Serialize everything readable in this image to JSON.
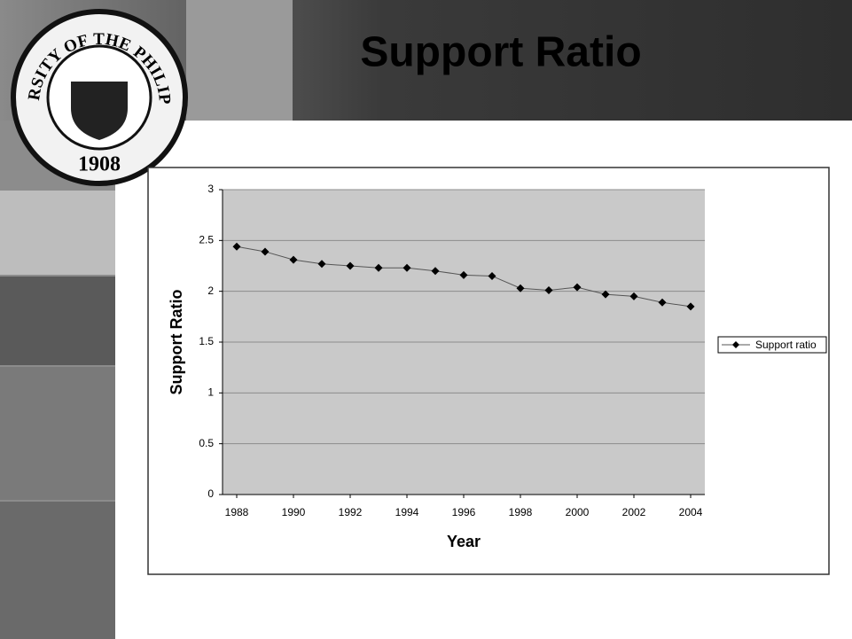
{
  "slide": {
    "title": "Support Ratio"
  },
  "logo": {
    "text": "UNIVERSITY OF THE PHILIPPINES",
    "year": "1908"
  },
  "chart_data": {
    "type": "line",
    "x": [
      1988,
      1989,
      1990,
      1991,
      1992,
      1993,
      1994,
      1995,
      1996,
      1997,
      1998,
      1999,
      2000,
      2001,
      2002,
      2003,
      2004
    ],
    "series": [
      {
        "name": "Support ratio",
        "color": "#000000",
        "values": [
          2.44,
          2.39,
          2.31,
          2.27,
          2.25,
          2.23,
          2.23,
          2.2,
          2.16,
          2.15,
          2.03,
          2.01,
          2.04,
          1.97,
          1.95,
          1.89,
          1.85
        ]
      }
    ],
    "xlim": [
      1987.5,
      2004.5
    ],
    "xticks": [
      1988,
      1990,
      1992,
      1994,
      1996,
      1998,
      2000,
      2002,
      2004
    ],
    "ylim": [
      0,
      3
    ],
    "yticks": [
      0,
      0.5,
      1,
      1.5,
      2,
      2.5,
      3
    ],
    "xlabel": "Year",
    "ylabel": "Support Ratio",
    "grid": true,
    "legend": "right"
  }
}
